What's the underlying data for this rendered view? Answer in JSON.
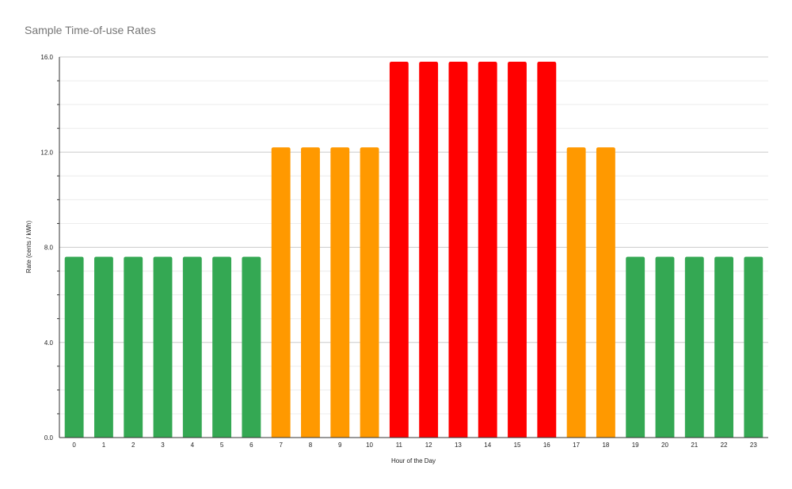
{
  "chart_data": {
    "type": "bar",
    "title": "Sample Time-of-use Rates",
    "xlabel": "Hour of the Day",
    "ylabel": "Rate (cents / kWh)",
    "ylim": [
      0,
      16
    ],
    "y_ticks": [
      "0.0",
      "4.0",
      "8.0",
      "12.0",
      "16.0"
    ],
    "categories": [
      "0",
      "1",
      "2",
      "3",
      "4",
      "5",
      "6",
      "7",
      "8",
      "9",
      "10",
      "11",
      "12",
      "13",
      "14",
      "15",
      "16",
      "17",
      "18",
      "19",
      "20",
      "21",
      "22",
      "23"
    ],
    "values": [
      7.6,
      7.6,
      7.6,
      7.6,
      7.6,
      7.6,
      7.6,
      12.2,
      12.2,
      12.2,
      12.2,
      15.8,
      15.8,
      15.8,
      15.8,
      15.8,
      15.8,
      12.2,
      12.2,
      7.6,
      7.6,
      7.6,
      7.6,
      7.6
    ],
    "bar_colors": [
      "#34a853",
      "#34a853",
      "#34a853",
      "#34a853",
      "#34a853",
      "#34a853",
      "#34a853",
      "#ff9900",
      "#ff9900",
      "#ff9900",
      "#ff9900",
      "#ff0000",
      "#ff0000",
      "#ff0000",
      "#ff0000",
      "#ff0000",
      "#ff0000",
      "#ff9900",
      "#ff9900",
      "#34a853",
      "#34a853",
      "#34a853",
      "#34a853",
      "#34a853"
    ],
    "grid": true,
    "legend": "none"
  }
}
